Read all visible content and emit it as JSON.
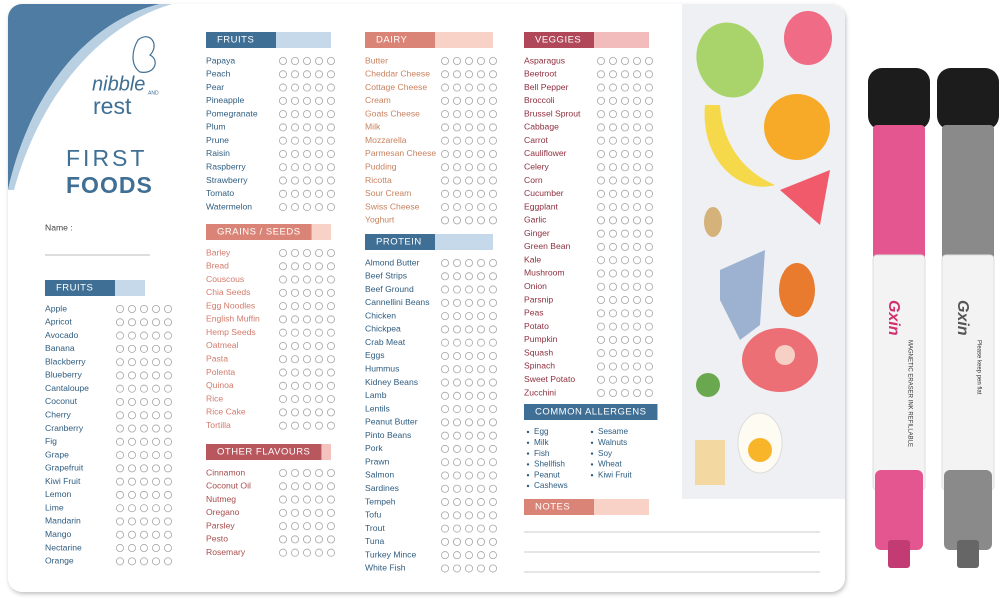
{
  "brand": {
    "line1": "nibble",
    "and": "AND",
    "line2": "rest"
  },
  "title": {
    "line1": "FIRST",
    "line2": "FOODS"
  },
  "name_label": "Name :",
  "sections": [
    {
      "title": "FRUITS",
      "items": [
        "Apple",
        "Apricot",
        "Avocado",
        "Banana",
        "Blackberry",
        "Blueberry",
        "Cantaloupe",
        "Coconut",
        "Cherry",
        "Cranberry",
        "Fig",
        "Grape",
        "Grapefruit",
        "Kiwi Fruit",
        "Lemon",
        "Lime",
        "Mandarin",
        "Mango",
        "Nectarine",
        "Orange"
      ]
    },
    {
      "title": "FRUITS",
      "items": [
        "Papaya",
        "Peach",
        "Pear",
        "Pineapple",
        "Pomegranate",
        "Plum",
        "Prune",
        "Raisin",
        "Raspberry",
        "Strawberry",
        "Tomato",
        "Watermelon"
      ]
    },
    {
      "title": "GRAINS / SEEDS",
      "items": [
        "Barley",
        "Bread",
        "Couscous",
        "Chia Seeds",
        "Egg Noodles",
        "English Muffin",
        "Hemp Seeds",
        "Oatmeal",
        "Pasta",
        "Polenta",
        "Quinoa",
        "Rice",
        "Rice Cake",
        "Tortilla"
      ]
    },
    {
      "title": "OTHER FLAVOURS",
      "items": [
        "Cinnamon",
        "Coconut Oil",
        "Nutmeg",
        "Oregano",
        "Parsley",
        "Pesto",
        "Rosemary"
      ]
    },
    {
      "title": "DAIRY",
      "items": [
        "Butter",
        "Cheddar Cheese",
        "Cottage Cheese",
        "Cream",
        "Goats Cheese",
        "Milk",
        "Mozzarella",
        "Parmesan Cheese",
        "Pudding",
        "Ricotta",
        "Sour Cream",
        "Swiss Cheese",
        "Yoghurt"
      ]
    },
    {
      "title": "PROTEIN",
      "items": [
        "Almond Butter",
        "Beef Strips",
        "Beef Ground",
        "Cannellini Beans",
        "Chicken",
        "Chickpea",
        "Crab Meat",
        "Eggs",
        "Hummus",
        "Kidney Beans",
        "Lamb",
        "Lentils",
        "Peanut Butter",
        "Pinto Beans",
        "Pork",
        "Prawn",
        "Salmon",
        "Sardines",
        "Tempeh",
        "Tofu",
        "Trout",
        "Tuna",
        "Turkey Mince",
        "White Fish"
      ]
    },
    {
      "title": "VEGGIES",
      "items": [
        "Asparagus",
        "Beetroot",
        "Bell Pepper",
        "Broccoli",
        "Brussel Sprout",
        "Cabbage",
        "Carrot",
        "Cauliflower",
        "Celery",
        "Corn",
        "Cucumber",
        "Eggplant",
        "Garlic",
        "Ginger",
        "Green Bean",
        "Kale",
        "Mushroom",
        "Onion",
        "Parsnip",
        "Peas",
        "Potato",
        "Pumpkin",
        "Squash",
        "Spinach",
        "Sweet Potato",
        "Zucchini"
      ]
    }
  ],
  "allergens": {
    "title": "COMMON ALLERGENS",
    "left": [
      "Egg",
      "Milk",
      "Fish",
      "Shellfish",
      "Peanut",
      "Cashews"
    ],
    "right": [
      "Sesame",
      "Walnuts",
      "Soy",
      "Wheat",
      "Kiwi Fruit"
    ]
  },
  "notes": {
    "title": "NOTES"
  },
  "markers": [
    {
      "brand": "Gxin",
      "label": "MAGNETIC ERASER INK REFILLABLE"
    },
    {
      "brand": "Gxin",
      "label": "Please keep pen flat"
    }
  ]
}
